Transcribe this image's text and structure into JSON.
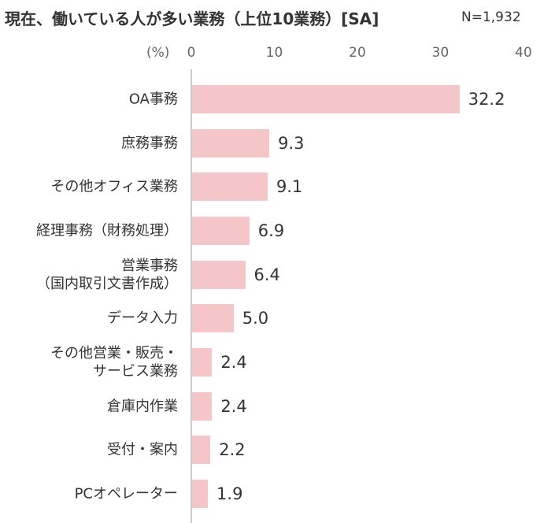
{
  "chart_data": {
    "type": "bar",
    "orientation": "horizontal",
    "title": "現在、働いている人が多い業務（上位10業務）[SA]",
    "subtitle": "N=1,932",
    "x_label": "(%)",
    "categories": [
      "OA事務",
      "庶務事務",
      "その他オフィス業務",
      "経理事務（財務処理）",
      "営業事務\n（国内取引文書作成）",
      "データ入力",
      "その他営業・販売・\nサービス業務",
      "倉庫内作業",
      "受付・案内",
      "PCオペレーター"
    ],
    "values": [
      32.2,
      9.3,
      9.1,
      6.9,
      6.4,
      5.0,
      2.4,
      2.4,
      2.2,
      1.9
    ],
    "value_labels": [
      "32.2",
      "9.3",
      "9.1",
      "6.9",
      "6.4",
      "5.0",
      "2.4",
      "2.4",
      "2.2",
      "1.9"
    ],
    "color": "#f5c6c8",
    "xlim": [
      0,
      40
    ],
    "xticks": [
      0,
      10,
      20,
      30,
      40
    ]
  }
}
